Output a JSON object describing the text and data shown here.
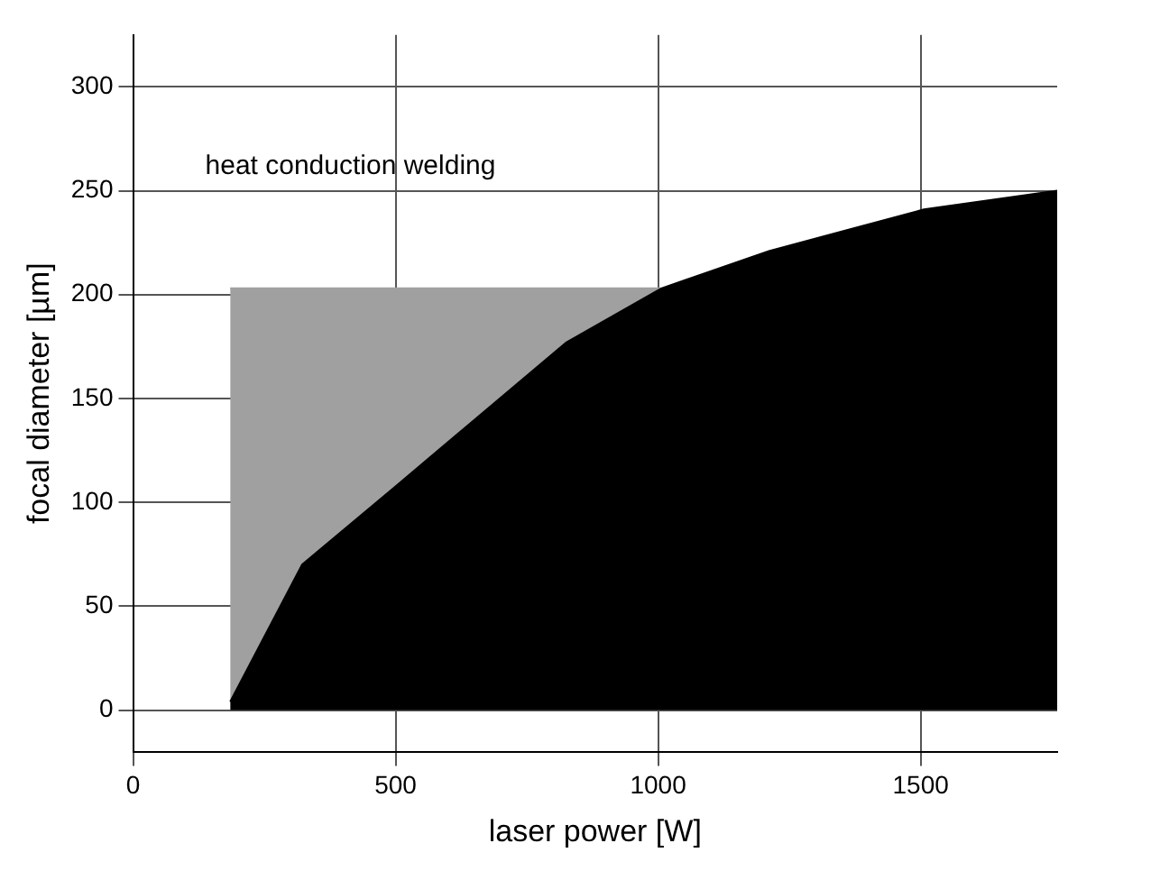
{
  "chart_data": {
    "type": "area",
    "xlabel": "laser power [W]",
    "ylabel": "focal diameter [µm]",
    "series": [
      {
        "color": "#000000",
        "x": [
          185,
          322,
          506,
          825,
          1006,
          1211,
          1506,
          1760
        ],
        "values": [
          4,
          70,
          109,
          177,
          203,
          221,
          241,
          250
        ]
      },
      {
        "color": "#a0a0a0",
        "x": [
          185,
          322,
          506,
          825,
          1006
        ],
        "values": [
          203,
          203,
          203,
          203,
          203
        ]
      }
    ],
    "xlim": [
      0,
      1760
    ],
    "xticks": [
      0,
      500,
      1000,
      1500
    ],
    "ylim": [
      -20,
      325
    ],
    "yticks": [
      0,
      50,
      100,
      150,
      200,
      250,
      300
    ],
    "grid": true,
    "annotations": [
      "heat conduction welding"
    ]
  }
}
